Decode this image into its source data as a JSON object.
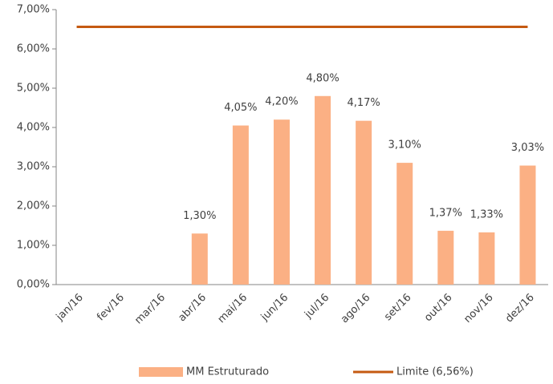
{
  "chart_data": {
    "type": "bar",
    "categories": [
      "jan/16",
      "fev/16",
      "mar/16",
      "abr/16",
      "mai/16",
      "jun/16",
      "jul/16",
      "ago/16",
      "set/16",
      "out/16",
      "nov/16",
      "dez/16"
    ],
    "series": [
      {
        "name": "MM Estruturado",
        "type": "bar",
        "color": "#fbb084",
        "values": [
          null,
          null,
          null,
          1.3,
          4.05,
          4.2,
          4.8,
          4.17,
          3.1,
          1.37,
          1.33,
          3.03
        ],
        "value_labels": [
          null,
          null,
          null,
          "1,30%",
          "4,05%",
          "4,20%",
          "4,80%",
          "4,17%",
          "3,10%",
          "1,37%",
          "1,33%",
          "3,03%"
        ]
      },
      {
        "name": "Limite (6,56%)",
        "type": "line",
        "color": "#c55a11",
        "values": [
          6.56,
          6.56,
          6.56,
          6.56,
          6.56,
          6.56,
          6.56,
          6.56,
          6.56,
          6.56,
          6.56,
          6.56
        ]
      }
    ],
    "ylim": [
      0,
      7
    ],
    "yticks": [
      {
        "value": 0,
        "label": "0,00%"
      },
      {
        "value": 1,
        "label": "1,00%"
      },
      {
        "value": 2,
        "label": "2,00%"
      },
      {
        "value": 3,
        "label": "3,00%"
      },
      {
        "value": 4,
        "label": "4,00%"
      },
      {
        "value": 5,
        "label": "5,00%"
      },
      {
        "value": 6,
        "label": "6,00%"
      },
      {
        "value": 7,
        "label": "7,00%"
      }
    ],
    "grid": false,
    "legend": "bottom"
  }
}
